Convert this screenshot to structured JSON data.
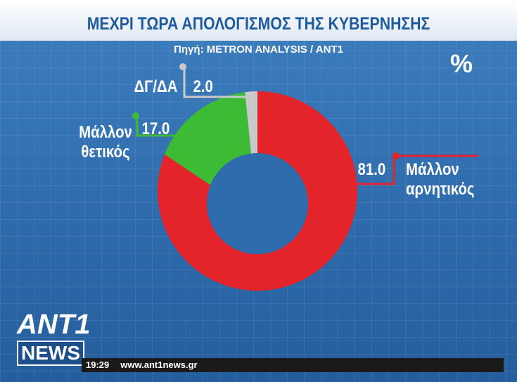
{
  "chart_data": {
    "type": "donut",
    "title": "ΜΕΧΡΙ ΤΩΡΑ ΑΠΟΛΟΓΙΣΜΟΣ ΤΗΣ ΚΥΒΕΡΝΗΣΗΣ",
    "subtitle": "Πηγή: METRON ANALYSIS / ANT1",
    "unit": "%",
    "categories": [
      "Μάλλον αρνητικός",
      "Μάλλον θετικός",
      "ΔΓ/ΔΑ"
    ],
    "values": [
      81,
      17,
      2
    ],
    "value_labels": [
      "81.0",
      "17.0",
      "2.0"
    ],
    "colors": [
      "#e3242b",
      "#3dbb35",
      "#c9c9c9"
    ]
  },
  "logo": {
    "top": "ANT1",
    "bottom": "NEWS"
  },
  "ticker": {
    "time": "19:29",
    "url": "www.ant1news.gr"
  }
}
